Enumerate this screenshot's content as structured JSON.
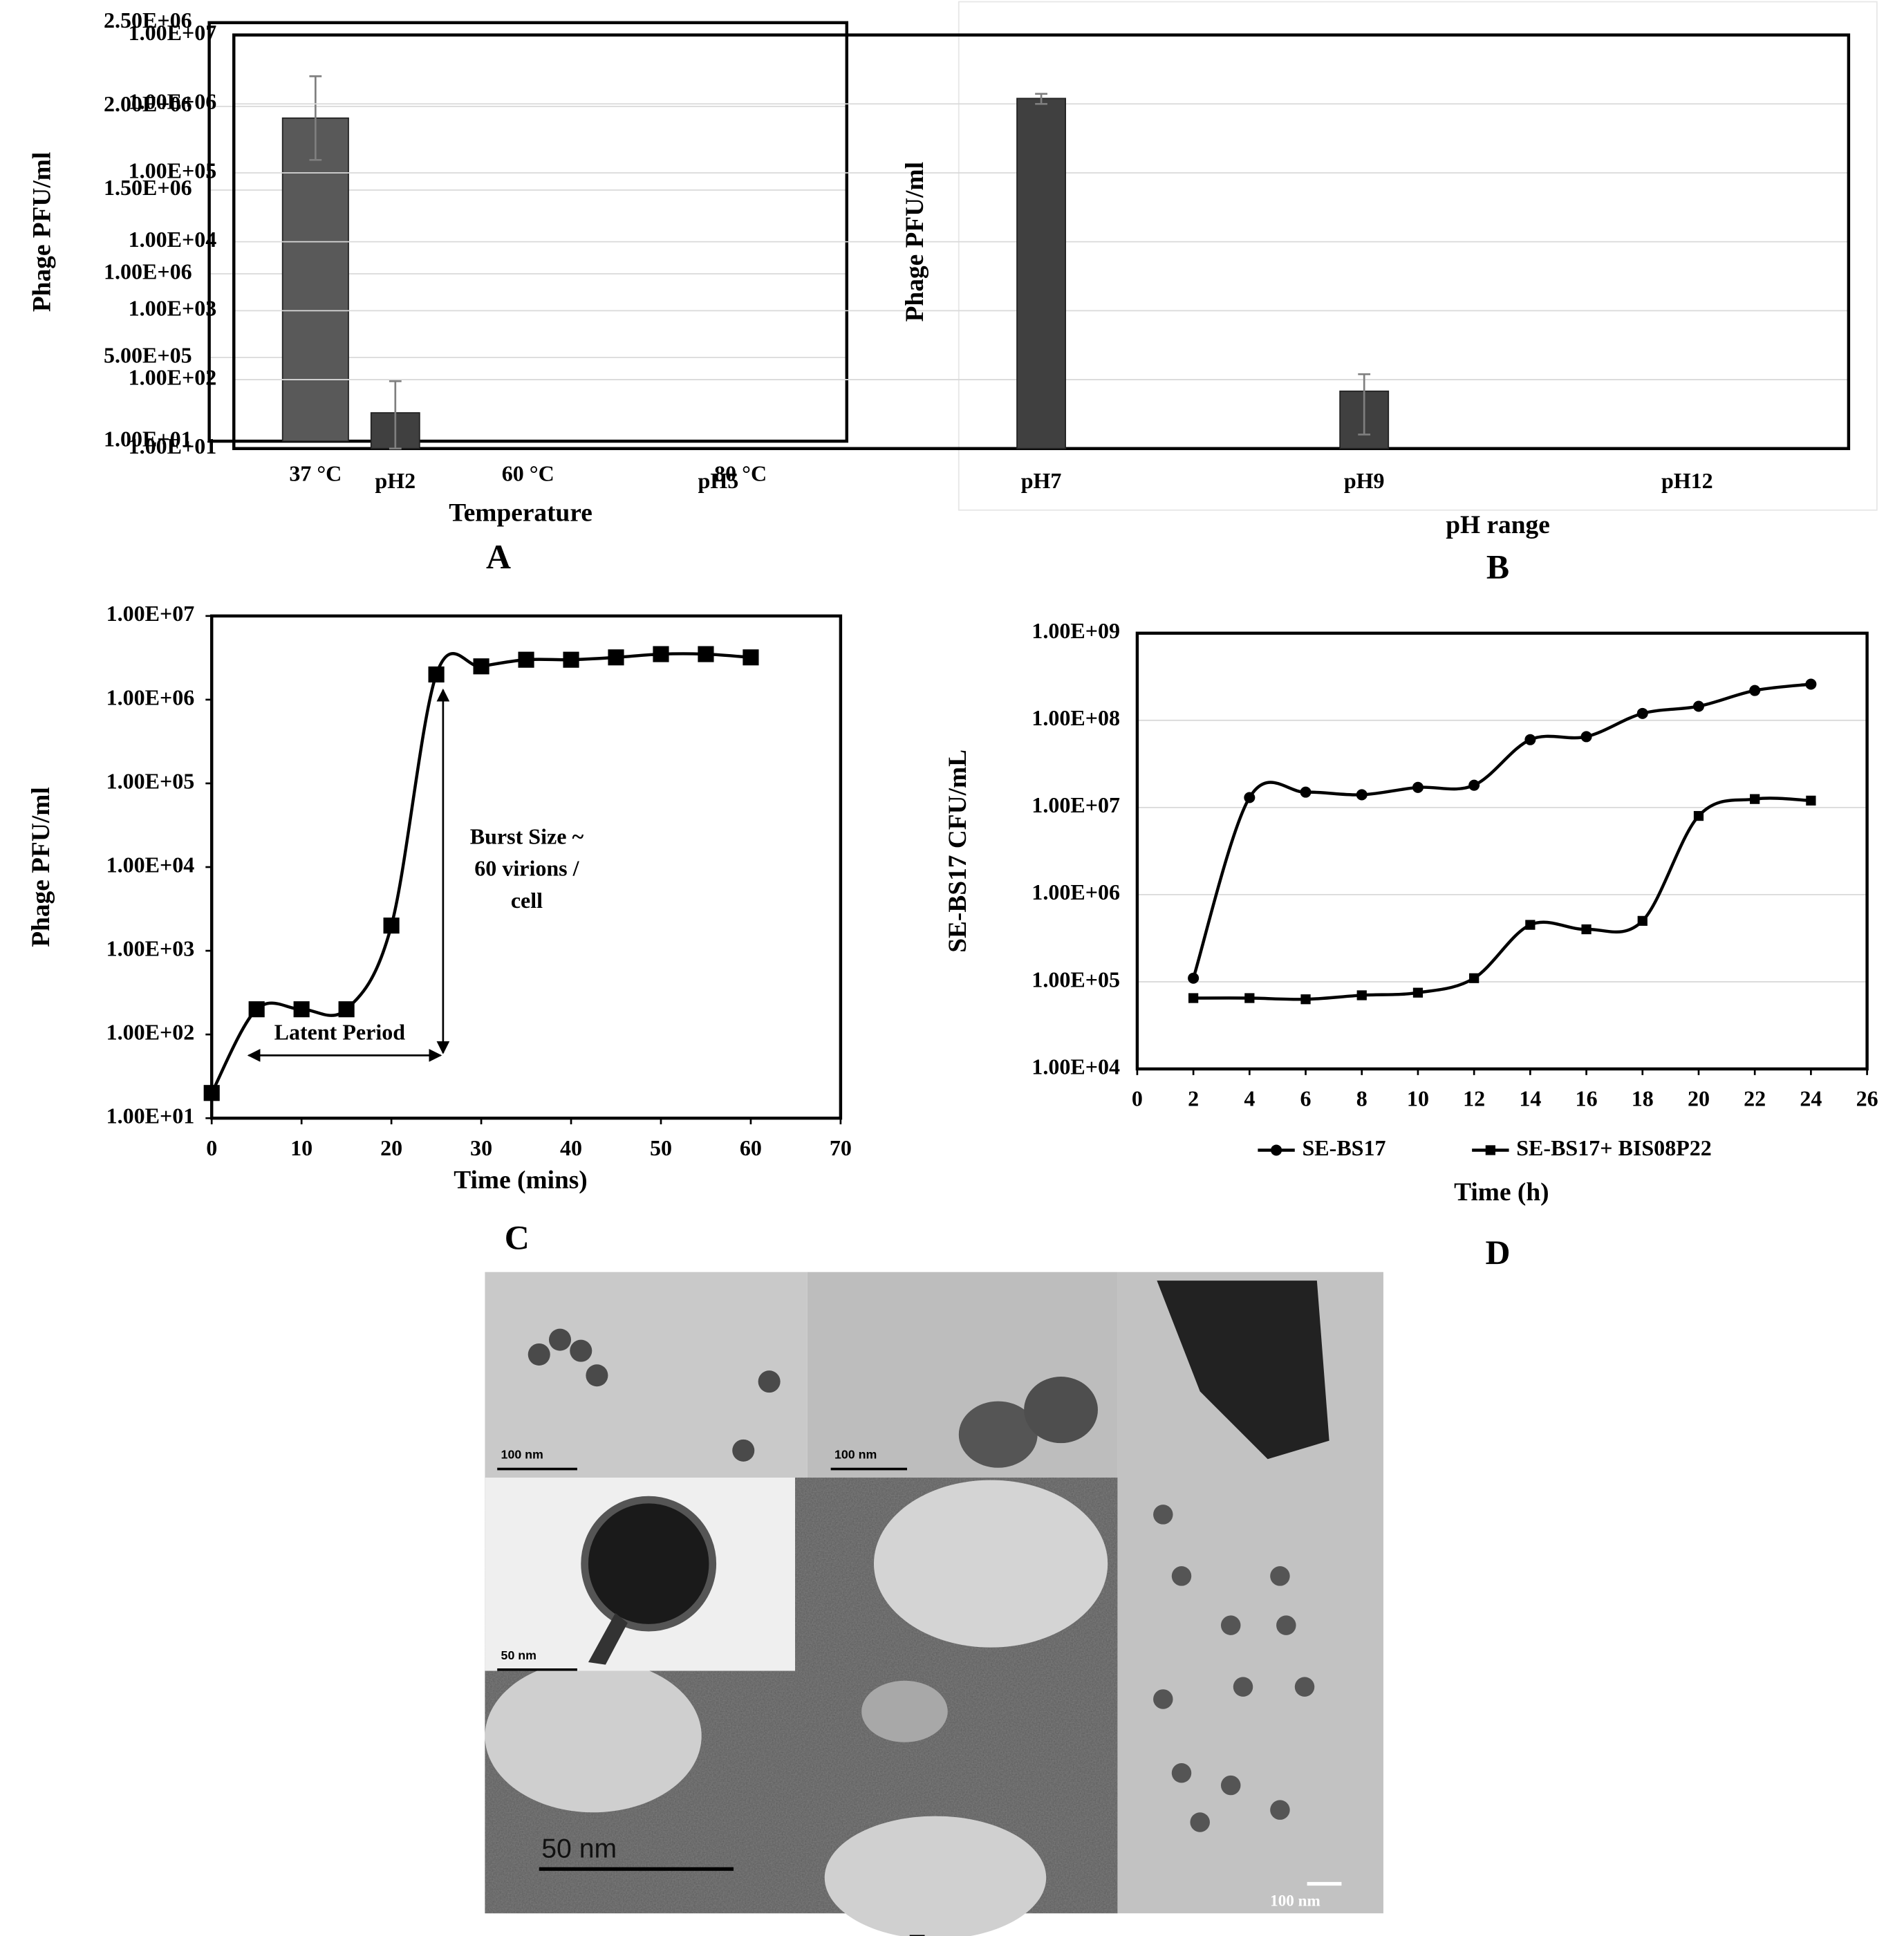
{
  "chart_data": [
    {
      "type": "bar",
      "panel_label": "A",
      "x_label": "Temperature",
      "y_label": "Phage PFU/ml",
      "categories": [
        "37 °C",
        "60 °C",
        "80 °C"
      ],
      "values": [
        1930000,
        null,
        null
      ],
      "errors": [
        250000,
        null,
        null
      ],
      "color": "#595959",
      "log_y": false,
      "grid": true,
      "ylim": [
        10,
        2500000
      ],
      "yticks": [
        {
          "value": 10,
          "label": "1.00E+01"
        },
        {
          "value": 500000,
          "label": "5.00E+05"
        },
        {
          "value": 1000000,
          "label": "1.00E+06"
        },
        {
          "value": 1500000,
          "label": "1.50E+06"
        },
        {
          "value": 2000000,
          "label": "2.00E+06"
        },
        {
          "value": 2500000,
          "label": "2.50E+06"
        }
      ]
    },
    {
      "type": "bar",
      "panel_label": "B",
      "x_label": "pH range",
      "y_label": "Phage PFU/ml",
      "categories": [
        "pH2",
        "pH5",
        "pH7",
        "pH9",
        "pH12"
      ],
      "values": [
        33,
        null,
        1200000,
        68,
        null
      ],
      "errors": [
        62,
        null,
        200000,
        52,
        null
      ],
      "color": "#404040",
      "log_y": true,
      "grid": true,
      "ylim": [
        10,
        10000000
      ],
      "yticks": [
        {
          "value": 10,
          "label": "1.00E+01"
        },
        {
          "value": 100,
          "label": "1.00E+02"
        },
        {
          "value": 1000,
          "label": "1.00E+03"
        },
        {
          "value": 10000,
          "label": "1.00E+04"
        },
        {
          "value": 100000,
          "label": "1.00E+05"
        },
        {
          "value": 1000000,
          "label": "1.00E+06"
        },
        {
          "value": 10000000,
          "label": "1.00E+07"
        }
      ]
    },
    {
      "type": "line",
      "panel_label": "C",
      "x_label": "Time (mins)",
      "y_label": "Phage PFU/ml",
      "x": [
        0,
        5,
        10,
        15,
        20,
        25,
        30,
        35,
        40,
        45,
        50,
        55,
        60
      ],
      "values": [
        20,
        200,
        200,
        200,
        2000,
        2000000,
        2500000,
        3000000,
        3000000,
        3200000,
        3500000,
        3500000,
        3200000
      ],
      "color": "#000000",
      "marker": "square",
      "log_y": true,
      "grid": false,
      "annotations": [
        "Latent Period",
        "Burst Size ~",
        "60 virions /",
        "cell"
      ],
      "xlim": [
        0,
        70
      ],
      "xticks": [
        0,
        10,
        20,
        30,
        40,
        50,
        60,
        70
      ],
      "ylim": [
        10,
        10000000
      ],
      "yticks": [
        {
          "value": 10,
          "label": "1.00E+01"
        },
        {
          "value": 100,
          "label": "1.00E+02"
        },
        {
          "value": 1000,
          "label": "1.00E+03"
        },
        {
          "value": 10000,
          "label": "1.00E+04"
        },
        {
          "value": 100000,
          "label": "1.00E+05"
        },
        {
          "value": 1000000,
          "label": "1.00E+06"
        },
        {
          "value": 10000000,
          "label": "1.00E+07"
        }
      ]
    },
    {
      "type": "line",
      "panel_label": "D",
      "x_label": "Time (h)",
      "y_label": "SE-BS17 CFU/mL",
      "x": [
        2,
        4,
        6,
        8,
        10,
        12,
        14,
        16,
        18,
        20,
        22,
        24
      ],
      "series": [
        {
          "name": "SE-BS17",
          "color": "#000000",
          "marker": "circle",
          "values": [
            110000,
            13000000,
            15000000,
            14000000,
            17000000,
            18000000,
            60000000,
            65000000,
            120000000,
            145000000,
            220000000,
            260000000
          ]
        },
        {
          "name": "SE-BS17+ BIS08P22",
          "color": "#000000",
          "marker": "square",
          "values": [
            65000,
            65000,
            63000,
            70000,
            75000,
            110000,
            450000,
            400000,
            500000,
            8000000,
            12500000,
            12000000
          ]
        }
      ],
      "log_y": true,
      "grid": true,
      "legend": "bottom",
      "xlim": [
        0,
        26
      ],
      "xticks": [
        0,
        2,
        4,
        6,
        8,
        10,
        12,
        14,
        16,
        18,
        20,
        22,
        24,
        26
      ],
      "ylim": [
        10000,
        1000000000
      ],
      "yticks": [
        {
          "value": 10000,
          "label": "1.00E+04"
        },
        {
          "value": 100000,
          "label": "1.00E+05"
        },
        {
          "value": 1000000,
          "label": "1.00E+06"
        },
        {
          "value": 10000000,
          "label": "1.00E+07"
        },
        {
          "value": 100000000,
          "label": "1.00E+08"
        },
        {
          "value": 1000000000,
          "label": "1.00E+09"
        }
      ]
    }
  ],
  "micrographs": {
    "panel_label": "E",
    "scale_bars": [
      "100 nm",
      "100 nm",
      "50 nm",
      "50 nm",
      "100 nm"
    ]
  }
}
